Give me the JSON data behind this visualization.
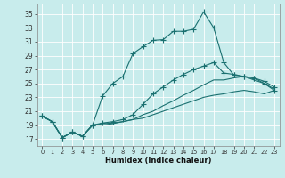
{
  "xlabel": "Humidex (Indice chaleur)",
  "background_color": "#c8ecec",
  "grid_color": "#ffffff",
  "line_color": "#1a7070",
  "xlim": [
    -0.5,
    23.5
  ],
  "ylim": [
    16.0,
    36.5
  ],
  "yticks": [
    17,
    19,
    21,
    23,
    25,
    27,
    29,
    31,
    33,
    35
  ],
  "xticks": [
    0,
    1,
    2,
    3,
    4,
    5,
    6,
    7,
    8,
    9,
    10,
    11,
    12,
    13,
    14,
    15,
    16,
    17,
    18,
    19,
    20,
    21,
    22,
    23
  ],
  "line_main_x": [
    0,
    1,
    2,
    3,
    4,
    5,
    6,
    7,
    8,
    9,
    10,
    11,
    12,
    13,
    14,
    15,
    16,
    17,
    18,
    19,
    20,
    21,
    22,
    23
  ],
  "line_main_y": [
    20.3,
    19.5,
    17.2,
    18.0,
    17.4,
    19.0,
    23.2,
    25.0,
    26.0,
    29.3,
    30.3,
    31.2,
    31.3,
    32.5,
    32.5,
    32.8,
    35.3,
    33.0,
    28.0,
    26.2,
    26.0,
    25.8,
    25.0,
    24.0
  ],
  "line_upper_x": [
    0,
    1,
    2,
    3,
    4,
    5,
    6,
    7,
    8,
    9,
    10,
    11,
    12,
    13,
    14,
    15,
    16,
    17,
    18,
    19,
    20,
    21,
    22,
    23
  ],
  "line_upper_y": [
    20.3,
    19.5,
    17.2,
    18.0,
    17.4,
    19.0,
    19.3,
    19.5,
    19.8,
    20.5,
    22.0,
    23.5,
    24.5,
    25.5,
    26.3,
    27.0,
    27.5,
    28.0,
    26.5,
    26.3,
    26.0,
    25.8,
    25.3,
    24.5
  ],
  "line_mid_x": [
    0,
    1,
    2,
    3,
    4,
    5,
    6,
    7,
    8,
    9,
    10,
    11,
    12,
    13,
    14,
    15,
    16,
    17,
    18,
    19,
    20,
    21,
    22,
    23
  ],
  "line_mid_y": [
    20.3,
    19.5,
    17.2,
    18.0,
    17.4,
    19.0,
    19.2,
    19.3,
    19.5,
    19.8,
    20.5,
    21.0,
    21.8,
    22.5,
    23.3,
    24.0,
    24.8,
    25.5,
    25.5,
    25.8,
    26.0,
    25.5,
    25.0,
    24.2
  ],
  "line_low_x": [
    0,
    1,
    2,
    3,
    4,
    5,
    6,
    7,
    8,
    9,
    10,
    11,
    12,
    13,
    14,
    15,
    16,
    17,
    18,
    19,
    20,
    21,
    22,
    23
  ],
  "line_low_y": [
    20.3,
    19.5,
    17.2,
    18.0,
    17.4,
    19.0,
    19.0,
    19.2,
    19.5,
    19.8,
    20.0,
    20.5,
    21.0,
    21.5,
    22.0,
    22.5,
    23.0,
    23.3,
    23.5,
    23.8,
    24.0,
    23.8,
    23.5,
    24.0
  ]
}
